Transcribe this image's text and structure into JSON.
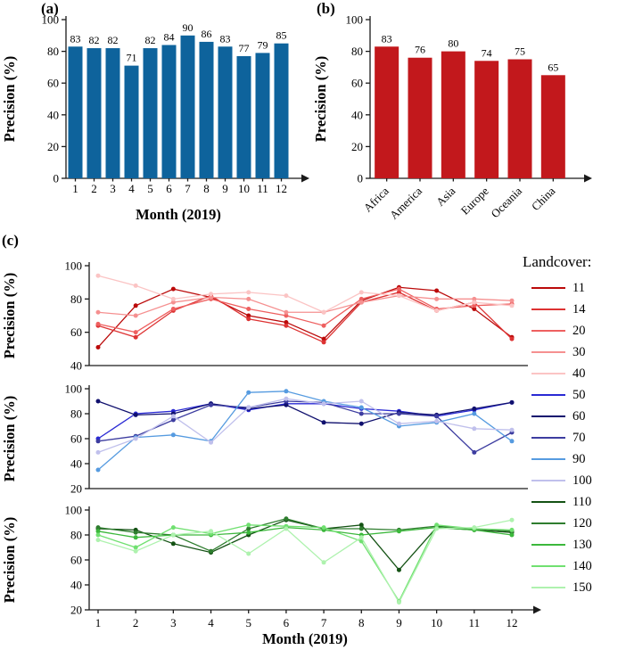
{
  "figure": {
    "background": "#ffffff",
    "panels": {
      "a": {
        "label": "(a)"
      },
      "b": {
        "label": "(b)"
      },
      "c": {
        "label": "(c)"
      }
    },
    "legend": {
      "title": "Landcover:",
      "entries": [
        {
          "label": "11",
          "color": "#bb0a0a"
        },
        {
          "label": "14",
          "color": "#dd3333"
        },
        {
          "label": "20",
          "color": "#ee6060"
        },
        {
          "label": "30",
          "color": "#f59090"
        },
        {
          "label": "40",
          "color": "#fbc4c4"
        },
        {
          "label": "50",
          "color": "#2a2ad4"
        },
        {
          "label": "60",
          "color": "#10106e"
        },
        {
          "label": "70",
          "color": "#3d3da0"
        },
        {
          "label": "90",
          "color": "#569be0"
        },
        {
          "label": "100",
          "color": "#c0c0ec"
        },
        {
          "label": "110",
          "color": "#145214"
        },
        {
          "label": "120",
          "color": "#2e7d2e"
        },
        {
          "label": "130",
          "color": "#3cb83c"
        },
        {
          "label": "140",
          "color": "#70e070"
        },
        {
          "label": "150",
          "color": "#aef2ae"
        }
      ]
    }
  },
  "chart_data": [
    {
      "id": "chart-a",
      "type": "bar",
      "panel": "a",
      "xlabel": "Month (2019)",
      "ylabel": "Precision (%)",
      "categories": [
        "1",
        "2",
        "3",
        "4",
        "5",
        "6",
        "7",
        "8",
        "9",
        "10",
        "11",
        "12"
      ],
      "values": [
        83,
        82,
        82,
        71,
        82,
        84,
        90,
        86,
        83,
        77,
        79,
        85
      ],
      "ylim": [
        0,
        100
      ],
      "yticks": [
        0,
        20,
        40,
        60,
        80,
        100
      ],
      "bar_color": "#0e639c",
      "value_labels": true
    },
    {
      "id": "chart-b",
      "type": "bar",
      "panel": "b",
      "xlabel": "",
      "ylabel": "Precision (%)",
      "categories": [
        "Africa",
        "America",
        "Asia",
        "Europe",
        "Oceania",
        "China"
      ],
      "values": [
        83,
        76,
        80,
        74,
        75,
        65
      ],
      "ylim": [
        0,
        100
      ],
      "yticks": [
        0,
        20,
        40,
        60,
        80,
        100
      ],
      "bar_color": "#c2181c",
      "value_labels": true,
      "tick_rotation": -45
    },
    {
      "id": "chart-c-red",
      "type": "line",
      "panel": "c",
      "xlabel": "",
      "ylabel": "Precision (%)",
      "x": [
        1,
        2,
        3,
        4,
        5,
        6,
        7,
        8,
        9,
        10,
        11,
        12
      ],
      "ylim": [
        40,
        100
      ],
      "yticks": [
        40,
        60,
        80,
        100
      ],
      "show_xticks": false,
      "series": [
        {
          "name": "11",
          "values": [
            51,
            76,
            86,
            81,
            70,
            66,
            56,
            79,
            87,
            85,
            74,
            57
          ]
        },
        {
          "name": "14",
          "values": [
            64,
            57,
            73,
            82,
            68,
            64,
            54,
            78,
            84,
            73,
            78,
            56
          ]
        },
        {
          "name": "20",
          "values": [
            65,
            60,
            74,
            80,
            74,
            70,
            64,
            80,
            86,
            74,
            76,
            77
          ]
        },
        {
          "name": "30",
          "values": [
            72,
            70,
            78,
            81,
            80,
            72,
            72,
            78,
            82,
            80,
            80,
            79
          ]
        },
        {
          "name": "40",
          "values": [
            94,
            88,
            80,
            83,
            84,
            82,
            72,
            84,
            82,
            73,
            78,
            76
          ]
        }
      ]
    },
    {
      "id": "chart-c-blue",
      "type": "line",
      "panel": "c",
      "xlabel": "",
      "ylabel": "Precision (%)",
      "x": [
        1,
        2,
        3,
        4,
        5,
        6,
        7,
        8,
        9,
        10,
        11,
        12
      ],
      "ylim": [
        20,
        100
      ],
      "yticks": [
        20,
        40,
        60,
        80,
        100
      ],
      "show_xticks": false,
      "series": [
        {
          "name": "50",
          "values": [
            60,
            80,
            82,
            88,
            83,
            88,
            88,
            84,
            82,
            78,
            83,
            89
          ]
        },
        {
          "name": "60",
          "values": [
            90,
            79,
            80,
            88,
            84,
            87,
            73,
            72,
            81,
            79,
            84,
            89
          ]
        },
        {
          "name": "70",
          "values": [
            58,
            62,
            75,
            87,
            85,
            90,
            89,
            80,
            80,
            78,
            49,
            65
          ]
        },
        {
          "name": "90",
          "values": [
            35,
            61,
            63,
            58,
            97,
            98,
            90,
            85,
            70,
            73,
            80,
            58
          ]
        },
        {
          "name": "100",
          "values": [
            49,
            60,
            78,
            57,
            85,
            92,
            88,
            90,
            72,
            74,
            68,
            67
          ]
        }
      ]
    },
    {
      "id": "chart-c-green",
      "type": "line",
      "panel": "c",
      "xlabel": "Month (2019)",
      "ylabel": "Precision (%)",
      "x": [
        1,
        2,
        3,
        4,
        5,
        6,
        7,
        8,
        9,
        10,
        11,
        12
      ],
      "ylim": [
        20,
        100
      ],
      "yticks": [
        20,
        40,
        60,
        80,
        100
      ],
      "show_xticks": true,
      "series": [
        {
          "name": "110",
          "values": [
            85,
            84,
            73,
            66,
            80,
            92,
            85,
            88,
            52,
            86,
            84,
            82
          ]
        },
        {
          "name": "120",
          "values": [
            86,
            82,
            80,
            67,
            85,
            93,
            85,
            85,
            84,
            87,
            85,
            83
          ]
        },
        {
          "name": "130",
          "values": [
            83,
            78,
            80,
            80,
            82,
            86,
            84,
            80,
            83,
            86,
            84,
            80
          ]
        },
        {
          "name": "140",
          "values": [
            80,
            70,
            86,
            81,
            88,
            87,
            86,
            75,
            27,
            88,
            85,
            84
          ]
        },
        {
          "name": "150",
          "values": [
            76,
            67,
            80,
            83,
            65,
            85,
            58,
            78,
            26,
            85,
            86,
            92
          ]
        }
      ]
    }
  ]
}
